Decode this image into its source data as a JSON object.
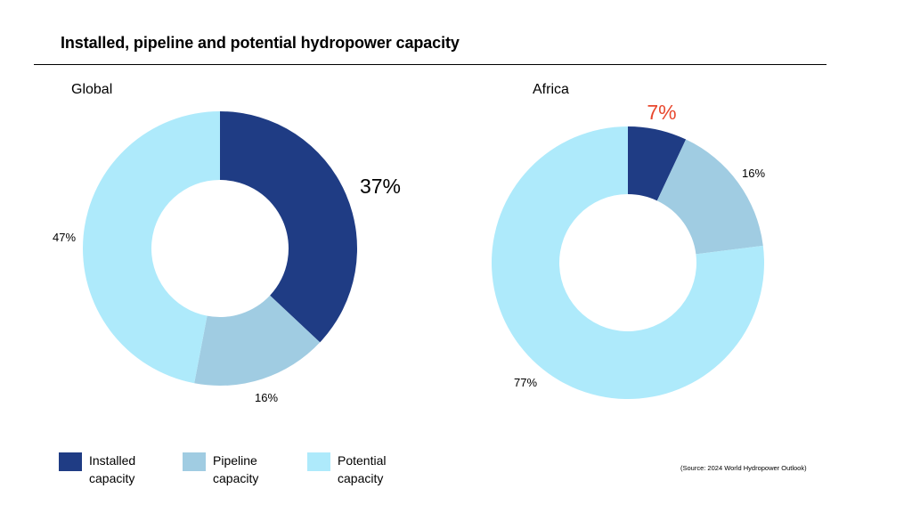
{
  "title": "Installed, pipeline and potential hydropower capacity",
  "source": "(Source: 2024 World Hydropower Outlook)",
  "colors": {
    "installed": "#1f3c84",
    "pipeline": "#a0cce2",
    "potential": "#aeeafb",
    "highlight": "#e8482e"
  },
  "legend": [
    {
      "label": "Installed capacity",
      "color": "#1f3c84"
    },
    {
      "label": "Pipeline capacity",
      "color": "#a0cce2"
    },
    {
      "label": "Potential capacity",
      "color": "#aeeafb"
    }
  ],
  "chart_data": [
    {
      "type": "pie",
      "title": "Global",
      "categories": [
        "Installed capacity",
        "Pipeline capacity",
        "Potential capacity"
      ],
      "values": [
        37,
        16,
        47
      ],
      "data_labels": [
        "37%",
        "16%",
        "47%"
      ],
      "donut": true
    },
    {
      "type": "pie",
      "title": "Africa",
      "categories": [
        "Installed capacity",
        "Pipeline capacity",
        "Potential capacity"
      ],
      "values": [
        7,
        16,
        77
      ],
      "data_labels": [
        "7%",
        "16%",
        "77%"
      ],
      "donut": true
    }
  ]
}
